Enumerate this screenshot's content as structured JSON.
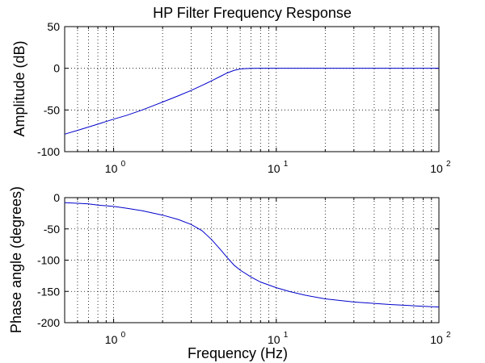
{
  "chart_data": [
    {
      "type": "line",
      "title": "HP Filter Frequency Response",
      "xlabel": "",
      "ylabel": "Amplitude (dB)",
      "xscale": "log",
      "xlim": [
        0.5,
        100
      ],
      "ylim": [
        -100,
        50
      ],
      "yticks": [
        {
          "v": 50,
          "label": "50"
        },
        {
          "v": 0,
          "label": "0"
        },
        {
          "v": -50,
          "label": "-50"
        },
        {
          "v": -100,
          "label": "-100"
        }
      ],
      "xticks": [
        {
          "v": 1,
          "base": "10",
          "exp": "0"
        },
        {
          "v": 10,
          "base": "10",
          "exp": "1"
        },
        {
          "v": 100,
          "base": "10",
          "exp": "2"
        }
      ],
      "grid": true,
      "color": "#0000cc",
      "x": [
        0.5,
        0.6,
        0.7,
        0.8,
        1,
        1.2,
        1.5,
        2,
        2.5,
        3,
        3.5,
        4,
        4.5,
        5,
        5.5,
        6,
        6.5,
        7,
        8,
        10,
        15,
        20,
        30,
        50,
        70,
        100
      ],
      "y": [
        -79,
        -74.5,
        -70.5,
        -67,
        -61,
        -56.5,
        -50,
        -40.5,
        -33,
        -26.5,
        -20.5,
        -15,
        -10,
        -5.5,
        -2.5,
        -0.8,
        -0.3,
        -0.1,
        0,
        0,
        0,
        0,
        0,
        0,
        0,
        0
      ]
    },
    {
      "type": "line",
      "title": "",
      "xlabel": "Frequency (Hz)",
      "ylabel": "Phase angle (degrees)",
      "xscale": "log",
      "xlim": [
        0.5,
        100
      ],
      "ylim": [
        -200,
        0
      ],
      "yticks": [
        {
          "v": 0,
          "label": "0"
        },
        {
          "v": -50,
          "label": "-50"
        },
        {
          "v": -100,
          "label": "-100"
        },
        {
          "v": -150,
          "label": "-150"
        },
        {
          "v": -200,
          "label": "-200"
        }
      ],
      "xticks": [
        {
          "v": 1,
          "base": "10",
          "exp": "0"
        },
        {
          "v": 10,
          "base": "10",
          "exp": "1"
        },
        {
          "v": 100,
          "base": "10",
          "exp": "2"
        }
      ],
      "grid": true,
      "color": "#0000cc",
      "x": [
        0.5,
        0.6,
        0.7,
        0.8,
        1,
        1.2,
        1.5,
        2,
        2.5,
        3,
        3.5,
        4,
        4.5,
        5,
        5.5,
        6,
        7,
        8,
        10,
        12,
        15,
        20,
        30,
        50,
        70,
        100
      ],
      "y": [
        -8,
        -9,
        -10,
        -12,
        -14,
        -17,
        -21,
        -28,
        -35,
        -43,
        -53,
        -67,
        -82,
        -96,
        -108,
        -116,
        -127,
        -135,
        -144,
        -150,
        -156,
        -162,
        -167,
        -171,
        -173,
        -175
      ]
    }
  ]
}
